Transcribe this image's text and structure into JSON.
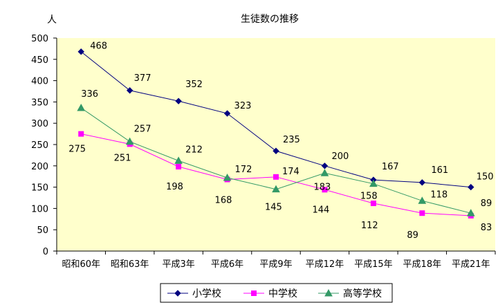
{
  "chart_data": {
    "type": "line",
    "title": "生徒数の推移",
    "ylabel": "人",
    "xlabel": "",
    "categories": [
      "昭和60年",
      "昭和63年",
      "平成3年",
      "平成6年",
      "平成9年",
      "平成12年",
      "平成15年",
      "平成18年",
      "平成21年"
    ],
    "ylim": [
      0,
      500
    ],
    "yticks": [
      0,
      50,
      100,
      150,
      200,
      250,
      300,
      350,
      400,
      450,
      500
    ],
    "plot_background": "#ffffcc",
    "grid": false,
    "legend_position": "bottom",
    "series": [
      {
        "name": "小学校",
        "values": [
          468,
          377,
          352,
          323,
          235,
          200,
          167,
          161,
          150
        ],
        "color": "#000080",
        "marker": "diamond"
      },
      {
        "name": "中学校",
        "values": [
          275,
          251,
          198,
          168,
          174,
          144,
          112,
          89,
          83
        ],
        "color": "#ff00ff",
        "marker": "square"
      },
      {
        "name": "高等学校",
        "values": [
          336,
          257,
          212,
          172,
          145,
          183,
          158,
          118,
          89
        ],
        "color": "#339966",
        "marker": "triangle"
      }
    ]
  }
}
